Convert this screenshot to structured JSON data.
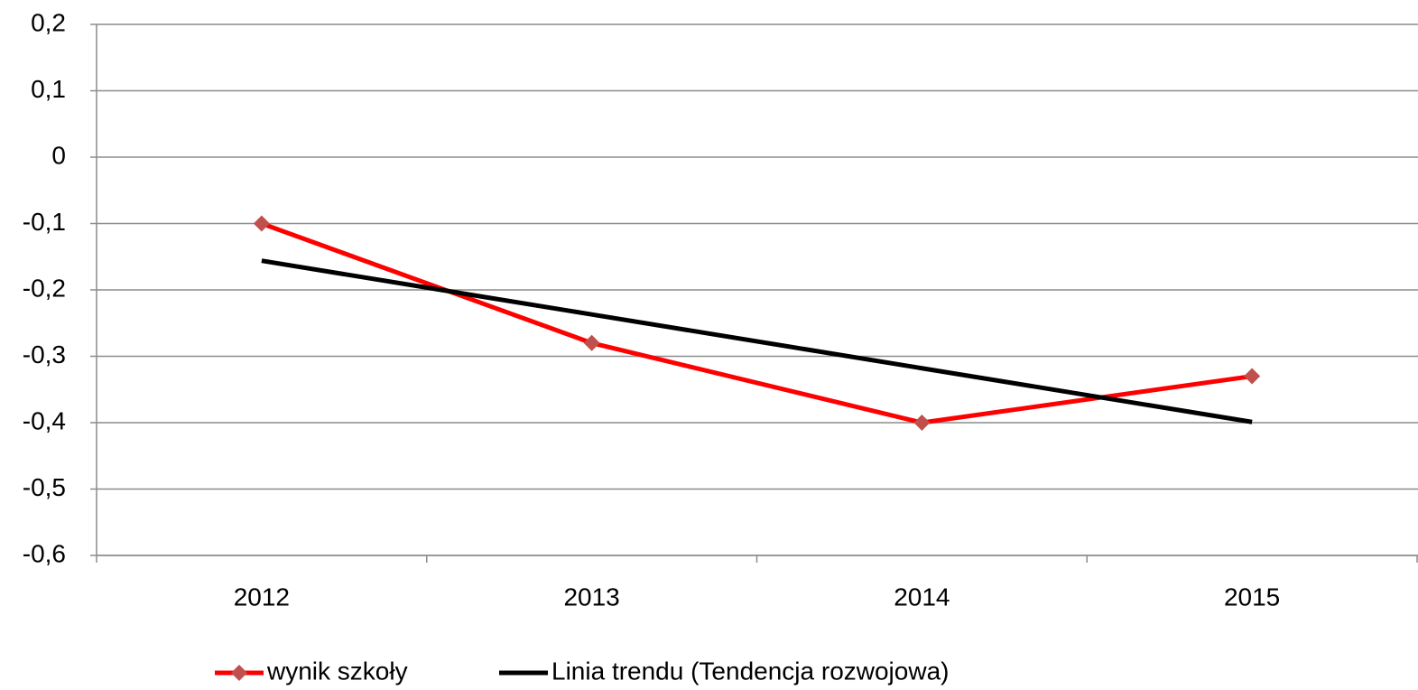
{
  "chart_data": {
    "type": "line",
    "categories": [
      "2012",
      "2013",
      "2014",
      "2015"
    ],
    "series": [
      {
        "name": "wynik szkoły",
        "color": "#ff0000",
        "marker_color": "#c0504d",
        "values": [
          -0.1,
          -0.28,
          -0.4,
          -0.33
        ]
      },
      {
        "name": "Linia trendu (Tendencja rozwojowa)",
        "color": "#000000",
        "values": [
          -0.156,
          -0.237,
          -0.318,
          -0.399
        ]
      }
    ],
    "ylim": [
      -0.6,
      0.2
    ],
    "yticks": [
      {
        "value": -0.6,
        "label": "-0,6"
      },
      {
        "value": -0.5,
        "label": "-0,5"
      },
      {
        "value": -0.4,
        "label": "-0,4"
      },
      {
        "value": -0.3,
        "label": "-0,3"
      },
      {
        "value": -0.2,
        "label": "-0,2"
      },
      {
        "value": -0.1,
        "label": "-0,1"
      },
      0,
      {
        "value": 0.1,
        "label": "0,1"
      },
      {
        "value": 0.2,
        "label": "0,2"
      }
    ],
    "grid": true,
    "legend": "bottom"
  }
}
